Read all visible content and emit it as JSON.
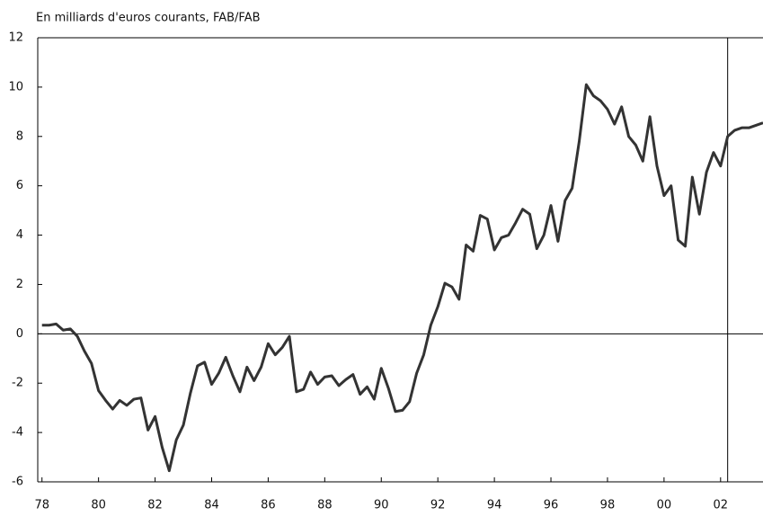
{
  "chart_data": {
    "type": "line",
    "y_label": "En milliards d'euros courants, FAB/FAB",
    "x": [
      1978,
      1978.25,
      1978.5,
      1978.75,
      1979,
      1979.25,
      1979.5,
      1979.75,
      1980,
      1980.25,
      1980.5,
      1980.75,
      1981,
      1981.25,
      1981.5,
      1981.75,
      1982,
      1982.25,
      1982.5,
      1982.75,
      1983,
      1983.25,
      1983.5,
      1983.75,
      1984,
      1984.25,
      1984.5,
      1984.75,
      1985,
      1985.25,
      1985.5,
      1985.75,
      1986,
      1986.25,
      1986.5,
      1986.75,
      1987,
      1987.25,
      1987.5,
      1987.75,
      1988,
      1988.25,
      1988.5,
      1988.75,
      1989,
      1989.25,
      1989.5,
      1989.75,
      1990,
      1990.25,
      1990.5,
      1990.75,
      1991,
      1991.25,
      1991.5,
      1991.75,
      1992,
      1992.25,
      1992.5,
      1992.75,
      1993,
      1993.25,
      1993.5,
      1993.75,
      1994,
      1994.25,
      1994.5,
      1994.75,
      1995,
      1995.25,
      1995.5,
      1995.75,
      1996,
      1996.25,
      1996.5,
      1996.75,
      1997,
      1997.25,
      1997.5,
      1997.75,
      1998,
      1998.25,
      1998.5,
      1998.75,
      1999,
      1999.25,
      1999.5,
      1999.75,
      2000,
      2000.25,
      2000.5,
      2000.75,
      2001,
      2001.25,
      2001.5,
      2001.75,
      2002,
      2002.25,
      2002.5,
      2002.75,
      2003,
      2003.25,
      2003.5
    ],
    "series": [
      {
        "color": "#333333",
        "values": [
          0.35,
          0.35,
          0.4,
          0.15,
          0.2,
          -0.1,
          -0.7,
          -1.2,
          -2.3,
          -2.7,
          -3.05,
          -2.7,
          -2.9,
          -2.65,
          -2.6,
          -3.9,
          -3.35,
          -4.6,
          -5.55,
          -4.3,
          -3.7,
          -2.4,
          -1.3,
          -1.15,
          -2.05,
          -1.6,
          -0.95,
          -1.7,
          -2.35,
          -1.35,
          -1.9,
          -1.35,
          -0.4,
          -0.85,
          -0.55,
          -0.1,
          -2.35,
          -2.25,
          -1.55,
          -2.05,
          -1.75,
          -1.7,
          -2.1,
          -1.85,
          -1.65,
          -2.45,
          -2.15,
          -2.65,
          -1.4,
          -2.2,
          -3.15,
          -3.1,
          -2.75,
          -1.6,
          -0.85,
          0.35,
          1.1,
          2.05,
          1.9,
          1.4,
          3.6,
          3.35,
          4.8,
          4.65,
          3.4,
          3.9,
          4.0,
          4.5,
          5.05,
          4.85,
          3.45,
          4.0,
          5.2,
          3.75,
          5.4,
          5.9,
          7.8,
          10.1,
          9.65,
          9.45,
          9.1,
          8.5,
          9.2,
          8.0,
          7.65,
          7.0,
          8.8,
          6.8,
          5.6,
          6.0,
          3.8,
          3.55,
          6.35,
          4.85,
          6.55,
          7.35,
          6.8,
          8.0,
          8.25,
          8.35,
          8.35,
          8.45,
          8.55
        ]
      }
    ],
    "xlim": [
      1977.85,
      2003.5
    ],
    "xticks": [
      {
        "value": 1978,
        "label": "78"
      },
      {
        "value": 1980,
        "label": "80"
      },
      {
        "value": 1982,
        "label": "82"
      },
      {
        "value": 1984,
        "label": "84"
      },
      {
        "value": 1986,
        "label": "86"
      },
      {
        "value": 1988,
        "label": "88"
      },
      {
        "value": 1990,
        "label": "90"
      },
      {
        "value": 1992,
        "label": "92"
      },
      {
        "value": 1994,
        "label": "94"
      },
      {
        "value": 1996,
        "label": "96"
      },
      {
        "value": 1998,
        "label": "98"
      },
      {
        "value": 2000,
        "label": "00"
      },
      {
        "value": 2002,
        "label": "02"
      }
    ],
    "ylim": [
      -6,
      12
    ],
    "yticks": [
      -6,
      -4,
      -2,
      0,
      2,
      4,
      6,
      8,
      10,
      12
    ],
    "marker_x": 2002.25
  }
}
